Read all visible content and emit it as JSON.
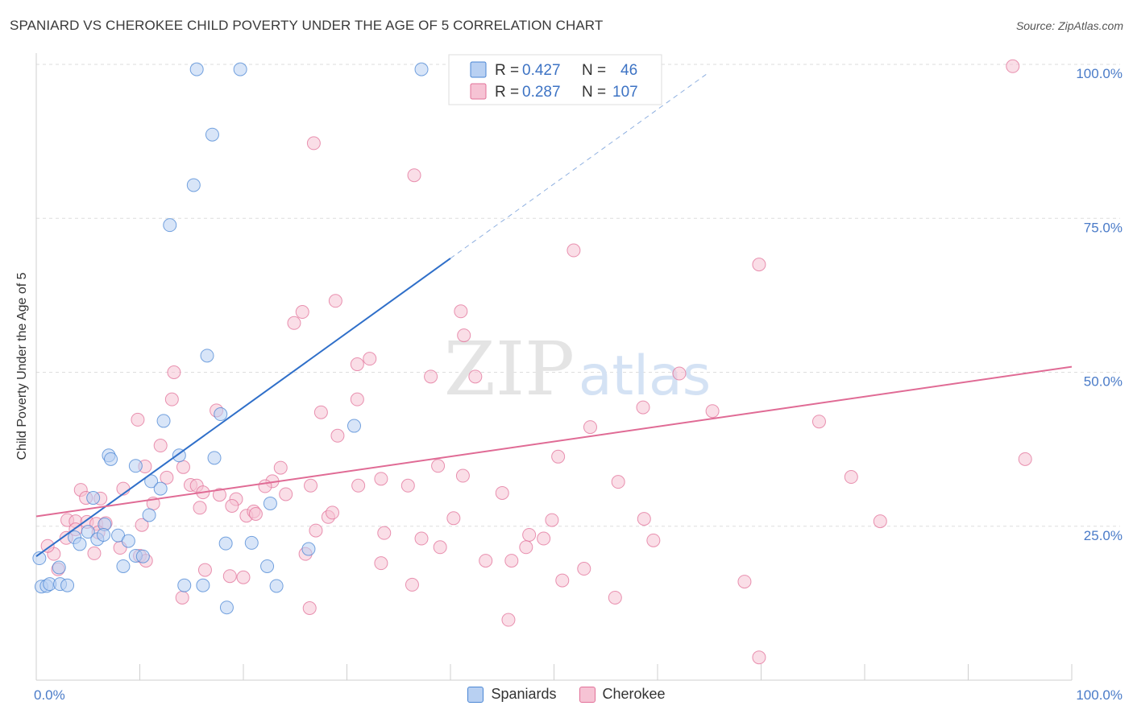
{
  "title": "SPANIARD VS CHEROKEE CHILD POVERTY UNDER THE AGE OF 5 CORRELATION CHART",
  "source": "Source: ZipAtlas.com",
  "watermark": {
    "zip": "ZIP",
    "atlas": "atlas"
  },
  "colors": {
    "blue": "#4a86d4",
    "blue_fill": "#b8d0f2",
    "pink": "#e27098",
    "pink_fill": "#f6c3d4",
    "axis_text": "#4a7bc8"
  },
  "legend_box": [
    {
      "r_label": "R = ",
      "r_value": "0.427",
      "n_label": "N = ",
      "n_value": "46"
    },
    {
      "r_label": "R = ",
      "r_value": "0.287",
      "n_label": "N = ",
      "n_value": "107"
    }
  ],
  "chart_data": {
    "type": "scatter",
    "title": "SPANIARD VS CHEROKEE CHILD POVERTY UNDER THE AGE OF 5 CORRELATION CHART",
    "xlabel": "",
    "ylabel": "Child Poverty Under the Age of 5",
    "xlim": [
      0,
      100
    ],
    "ylim": [
      0,
      100
    ],
    "x_tick_labels": [
      "0.0%",
      "100.0%"
    ],
    "y_tick_labels": [
      "25.0%",
      "50.0%",
      "75.0%",
      "100.0%"
    ],
    "y_ticks": [
      25,
      50,
      75,
      100
    ],
    "grid": true,
    "legend_position": "bottom",
    "series": [
      {
        "name": "Spaniards",
        "R": 0.427,
        "N": 46,
        "trend": {
          "x0": 0,
          "y0": 20.1,
          "x1": 40.0,
          "y1": 68.5,
          "dash_to_x": 65.0
        },
        "points": [
          [
            15.5,
            99.2
          ],
          [
            19.7,
            99.2
          ],
          [
            37.2,
            99.2
          ],
          [
            17.0,
            88.6
          ],
          [
            15.2,
            80.4
          ],
          [
            12.9,
            73.9
          ],
          [
            16.5,
            52.7
          ],
          [
            30.7,
            41.3
          ],
          [
            12.3,
            42.1
          ],
          [
            17.8,
            43.2
          ],
          [
            7.0,
            36.5
          ],
          [
            9.6,
            34.8
          ],
          [
            11.1,
            32.3
          ],
          [
            12.0,
            31.1
          ],
          [
            5.5,
            29.6
          ],
          [
            13.8,
            36.5
          ],
          [
            17.2,
            36.1
          ],
          [
            10.9,
            26.8
          ],
          [
            5.0,
            24.1
          ],
          [
            6.6,
            25.3
          ],
          [
            3.7,
            23.2
          ],
          [
            5.9,
            22.9
          ],
          [
            6.5,
            23.6
          ],
          [
            7.9,
            23.5
          ],
          [
            8.9,
            22.6
          ],
          [
            4.2,
            22.1
          ],
          [
            9.6,
            20.2
          ],
          [
            10.3,
            20.1
          ],
          [
            8.4,
            18.5
          ],
          [
            2.2,
            18.3
          ],
          [
            18.3,
            22.2
          ],
          [
            20.8,
            22.3
          ],
          [
            22.3,
            18.5
          ],
          [
            26.3,
            21.3
          ],
          [
            22.6,
            28.7
          ],
          [
            0.3,
            19.8
          ],
          [
            0.5,
            15.2
          ],
          [
            1.0,
            15.3
          ],
          [
            1.3,
            15.6
          ],
          [
            2.3,
            15.6
          ],
          [
            14.3,
            15.4
          ],
          [
            16.1,
            15.4
          ],
          [
            23.2,
            15.3
          ],
          [
            18.4,
            11.8
          ],
          [
            3.0,
            15.4
          ],
          [
            7.2,
            35.9
          ]
        ]
      },
      {
        "name": "Cherokee",
        "R": 0.287,
        "N": 107,
        "trend": {
          "x0": 0,
          "y0": 26.6,
          "x1": 100,
          "y1": 50.9
        },
        "points": [
          [
            56.9,
            99.7
          ],
          [
            94.3,
            99.7
          ],
          [
            26.8,
            87.2
          ],
          [
            36.5,
            82.0
          ],
          [
            51.9,
            69.8
          ],
          [
            69.8,
            67.5
          ],
          [
            28.9,
            61.6
          ],
          [
            25.7,
            59.8
          ],
          [
            24.9,
            58.0
          ],
          [
            41.0,
            59.9
          ],
          [
            41.3,
            56.0
          ],
          [
            32.2,
            52.2
          ],
          [
            31.0,
            51.3
          ],
          [
            13.3,
            50.0
          ],
          [
            38.1,
            49.3
          ],
          [
            42.4,
            49.3
          ],
          [
            62.1,
            49.8
          ],
          [
            13.1,
            45.6
          ],
          [
            31.0,
            45.6
          ],
          [
            17.4,
            43.8
          ],
          [
            27.5,
            43.5
          ],
          [
            58.6,
            44.3
          ],
          [
            65.3,
            43.7
          ],
          [
            75.6,
            42.0
          ],
          [
            9.8,
            42.3
          ],
          [
            53.5,
            41.1
          ],
          [
            29.1,
            39.7
          ],
          [
            12.0,
            38.1
          ],
          [
            50.4,
            36.3
          ],
          [
            95.5,
            35.9
          ],
          [
            10.5,
            34.7
          ],
          [
            14.2,
            34.6
          ],
          [
            23.6,
            34.5
          ],
          [
            38.8,
            34.8
          ],
          [
            78.7,
            33.0
          ],
          [
            12.6,
            32.9
          ],
          [
            22.8,
            32.3
          ],
          [
            33.3,
            32.7
          ],
          [
            56.2,
            32.2
          ],
          [
            4.3,
            30.9
          ],
          [
            8.4,
            31.1
          ],
          [
            14.9,
            31.7
          ],
          [
            15.5,
            31.6
          ],
          [
            16.1,
            30.5
          ],
          [
            17.7,
            30.1
          ],
          [
            19.3,
            29.4
          ],
          [
            22.1,
            31.5
          ],
          [
            24.1,
            30.2
          ],
          [
            26.5,
            31.6
          ],
          [
            31.1,
            31.6
          ],
          [
            35.9,
            31.6
          ],
          [
            41.2,
            33.2
          ],
          [
            45.0,
            30.4
          ],
          [
            4.8,
            29.6
          ],
          [
            6.2,
            29.5
          ],
          [
            11.3,
            28.7
          ],
          [
            15.8,
            28.0
          ],
          [
            18.9,
            28.3
          ],
          [
            20.3,
            26.7
          ],
          [
            21.0,
            27.4
          ],
          [
            21.2,
            27.0
          ],
          [
            28.2,
            26.5
          ],
          [
            28.6,
            27.2
          ],
          [
            3.0,
            26.0
          ],
          [
            3.8,
            25.8
          ],
          [
            4.9,
            25.7
          ],
          [
            5.8,
            25.4
          ],
          [
            6.7,
            25.5
          ],
          [
            10.2,
            25.2
          ],
          [
            40.3,
            26.3
          ],
          [
            49.8,
            26.0
          ],
          [
            58.7,
            26.2
          ],
          [
            81.5,
            25.8
          ],
          [
            2.9,
            23.1
          ],
          [
            3.8,
            24.5
          ],
          [
            6.0,
            24.0
          ],
          [
            27.0,
            24.3
          ],
          [
            33.6,
            23.9
          ],
          [
            37.2,
            23.0
          ],
          [
            47.6,
            23.6
          ],
          [
            49.0,
            23.0
          ],
          [
            59.6,
            22.7
          ],
          [
            39.0,
            21.6
          ],
          [
            47.3,
            21.6
          ],
          [
            1.7,
            20.5
          ],
          [
            5.6,
            20.6
          ],
          [
            8.1,
            21.5
          ],
          [
            10.0,
            20.2
          ],
          [
            26.0,
            20.5
          ],
          [
            43.4,
            19.4
          ],
          [
            45.9,
            19.4
          ],
          [
            10.6,
            19.4
          ],
          [
            16.3,
            17.9
          ],
          [
            18.7,
            16.9
          ],
          [
            20.0,
            16.7
          ],
          [
            33.3,
            19.0
          ],
          [
            52.9,
            18.1
          ],
          [
            36.3,
            15.5
          ],
          [
            50.8,
            16.2
          ],
          [
            68.4,
            16.0
          ],
          [
            14.1,
            13.4
          ],
          [
            55.9,
            13.4
          ],
          [
            26.4,
            11.7
          ],
          [
            45.6,
            9.8
          ],
          [
            69.8,
            3.7
          ],
          [
            2.1,
            18.0
          ],
          [
            1.1,
            21.8
          ]
        ]
      }
    ]
  }
}
